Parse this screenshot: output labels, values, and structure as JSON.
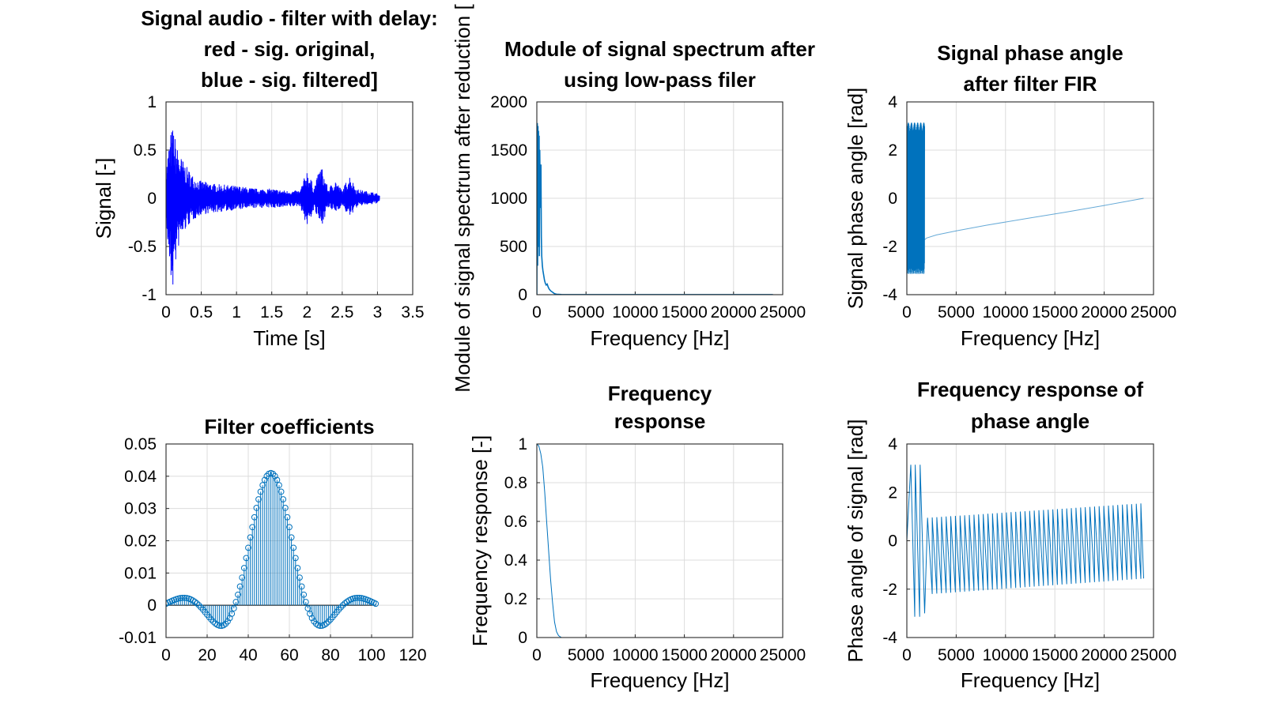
{
  "chart_data": [
    {
      "id": "signal",
      "type": "line",
      "title": [
        "Signal audio - filter with delay:",
        "red - sig. original,",
        "blue - sig. filtered]"
      ],
      "xlabel": "Time [s]",
      "ylabel": "Signal [-]",
      "xlim": [
        0,
        3.5
      ],
      "ylim": [
        -1,
        1
      ],
      "xticks": [
        "0",
        "0.5",
        "1",
        "1.5",
        "2",
        "2.5",
        "3",
        "3.5"
      ],
      "yticks": [
        "-1",
        "-0.5",
        "0",
        "0.5",
        "1"
      ],
      "grid": true,
      "series": [
        {
          "color": "#0000ff",
          "envelope_t": [
            0,
            0.03,
            0.07,
            0.1,
            0.15,
            0.2,
            0.3,
            0.4,
            0.5,
            0.7,
            1.0,
            1.3,
            1.5,
            1.7,
            1.9,
            2.0,
            2.1,
            2.2,
            2.3,
            2.4,
            2.5,
            2.6,
            2.7,
            2.8,
            2.9,
            3.0,
            3.03
          ],
          "envelope_upper": [
            0.3,
            0.5,
            0.7,
            0.75,
            0.55,
            0.45,
            0.32,
            0.22,
            0.18,
            0.15,
            0.13,
            0.1,
            0.1,
            0.08,
            0.08,
            0.3,
            0.12,
            0.35,
            0.1,
            0.2,
            0.08,
            0.25,
            0.1,
            0.08,
            0.07,
            0.05,
            0.03
          ],
          "envelope_lower": [
            -0.3,
            -0.55,
            -0.9,
            -0.95,
            -0.6,
            -0.45,
            -0.3,
            -0.22,
            -0.17,
            -0.15,
            -0.12,
            -0.1,
            -0.1,
            -0.1,
            -0.08,
            -0.3,
            -0.12,
            -0.3,
            -0.1,
            -0.15,
            -0.08,
            -0.2,
            -0.1,
            -0.07,
            -0.07,
            -0.05,
            -0.03
          ]
        }
      ]
    },
    {
      "id": "spectrum",
      "type": "line",
      "title": [
        "Module of signal spectrum after",
        "using low-pass filer"
      ],
      "xlabel": "Frequency [Hz]",
      "ylabel": "Module of signal spectrum after reduction [",
      "xlim": [
        0,
        25000
      ],
      "ylim": [
        0,
        2000
      ],
      "xticks": [
        "0",
        "5000",
        "10000",
        "15000",
        "20000",
        "25000"
      ],
      "yticks": [
        "0",
        "500",
        "1000",
        "1500",
        "2000"
      ],
      "grid": true,
      "series": [
        {
          "color": "#0072bd",
          "x": [
            0,
            50,
            80,
            110,
            140,
            170,
            200,
            230,
            260,
            300,
            340,
            380,
            420,
            460,
            500,
            560,
            620,
            700,
            780,
            860,
            950,
            1050,
            1150,
            1250,
            1400,
            1600,
            1800,
            2000,
            2500,
            5000,
            10000,
            15000,
            20000,
            24000
          ],
          "y": [
            0,
            1780,
            300,
            1750,
            500,
            1700,
            1200,
            1650,
            400,
            1500,
            1100,
            900,
            1350,
            600,
            400,
            300,
            250,
            200,
            150,
            120,
            100,
            110,
            80,
            60,
            40,
            25,
            10,
            5,
            2,
            1,
            1,
            1,
            1,
            1
          ]
        }
      ]
    },
    {
      "id": "phase",
      "type": "line",
      "title": [
        "Signal phase angle",
        "after filter FIR"
      ],
      "xlabel": "Frequency [Hz]",
      "ylabel": "Signal phase angle [rad]",
      "xlim": [
        0,
        25000
      ],
      "ylim": [
        -4,
        4
      ],
      "xticks": [
        "0",
        "5000",
        "10000",
        "15000",
        "20000",
        "25000"
      ],
      "yticks": [
        "-4",
        "-2",
        "0",
        "2",
        "4"
      ],
      "grid": true,
      "series": [
        {
          "color": "#0072bd",
          "noise_x": [
            0,
            1800
          ],
          "noise_range": [
            -3.14,
            3.14
          ],
          "x": [
            1800,
            2000,
            3000,
            5000,
            8000,
            12000,
            16000,
            20000,
            24000
          ],
          "y": [
            -1.72,
            -1.65,
            -1.52,
            -1.35,
            -1.12,
            -0.85,
            -0.58,
            -0.3,
            0.0
          ]
        }
      ]
    },
    {
      "id": "coeffs",
      "type": "scatter",
      "title": [
        "Filter coefficients"
      ],
      "xlabel": "",
      "ylabel": "",
      "xlim": [
        0,
        120
      ],
      "ylim": [
        -0.01,
        0.05
      ],
      "xticks": [
        "0",
        "20",
        "40",
        "60",
        "80",
        "100",
        "120"
      ],
      "yticks": [
        "-0.01",
        "0",
        "0.01",
        "0.02",
        "0.03",
        "0.04",
        "0.05"
      ],
      "grid": true,
      "series": [
        {
          "color": "#0072bd",
          "stem": true,
          "n": 103,
          "center": 51,
          "peak": 0.041
        }
      ]
    },
    {
      "id": "freqresp",
      "type": "line",
      "title": [
        "Frequency",
        "response"
      ],
      "xlabel": "Frequency [Hz]",
      "ylabel": "Frequency response [-]",
      "xlim": [
        0,
        25000
      ],
      "ylim": [
        0,
        1
      ],
      "xticks": [
        "0",
        "5000",
        "10000",
        "15000",
        "20000",
        "25000"
      ],
      "yticks": [
        "0",
        "0.2",
        "0.4",
        "0.6",
        "0.8",
        "1"
      ],
      "grid": true,
      "series": [
        {
          "color": "#0072bd",
          "x": [
            0,
            200,
            400,
            600,
            800,
            1000,
            1200,
            1400,
            1600,
            1800,
            2000,
            2200,
            2500,
            24000
          ],
          "y": [
            1.0,
            0.99,
            0.95,
            0.88,
            0.75,
            0.6,
            0.45,
            0.3,
            0.18,
            0.08,
            0.03,
            0.01,
            0.0,
            0.0
          ]
        }
      ]
    },
    {
      "id": "phaseresp",
      "type": "line",
      "title": [
        "Frequency response of",
        "phase angle"
      ],
      "xlabel": "Frequency [Hz]",
      "ylabel": "Phase angle of signal [rad]",
      "xlim": [
        0,
        25000
      ],
      "ylim": [
        -4,
        4
      ],
      "xticks": [
        "0",
        "5000",
        "10000",
        "15000",
        "20000",
        "25000"
      ],
      "yticks": [
        "-4",
        "-2",
        "0",
        "2",
        "4"
      ],
      "grid": true,
      "series": [
        {
          "color": "#0072bd",
          "x": [
            0,
            400,
            800,
            850,
            1300,
            1350,
            1800,
            1900,
            2100,
            2400,
            24000
          ],
          "y": [
            0,
            3.14,
            -3.14,
            3.14,
            -3.14,
            3.14,
            -3.0,
            0.95,
            -2.2,
            0.9,
            1.55
          ],
          "sawtooth_from": 2100,
          "sawtooth_period": 470,
          "sawtooth_top": [
            0.95,
            1.55
          ],
          "sawtooth_bottom": [
            -2.2,
            -1.55
          ]
        }
      ]
    }
  ]
}
